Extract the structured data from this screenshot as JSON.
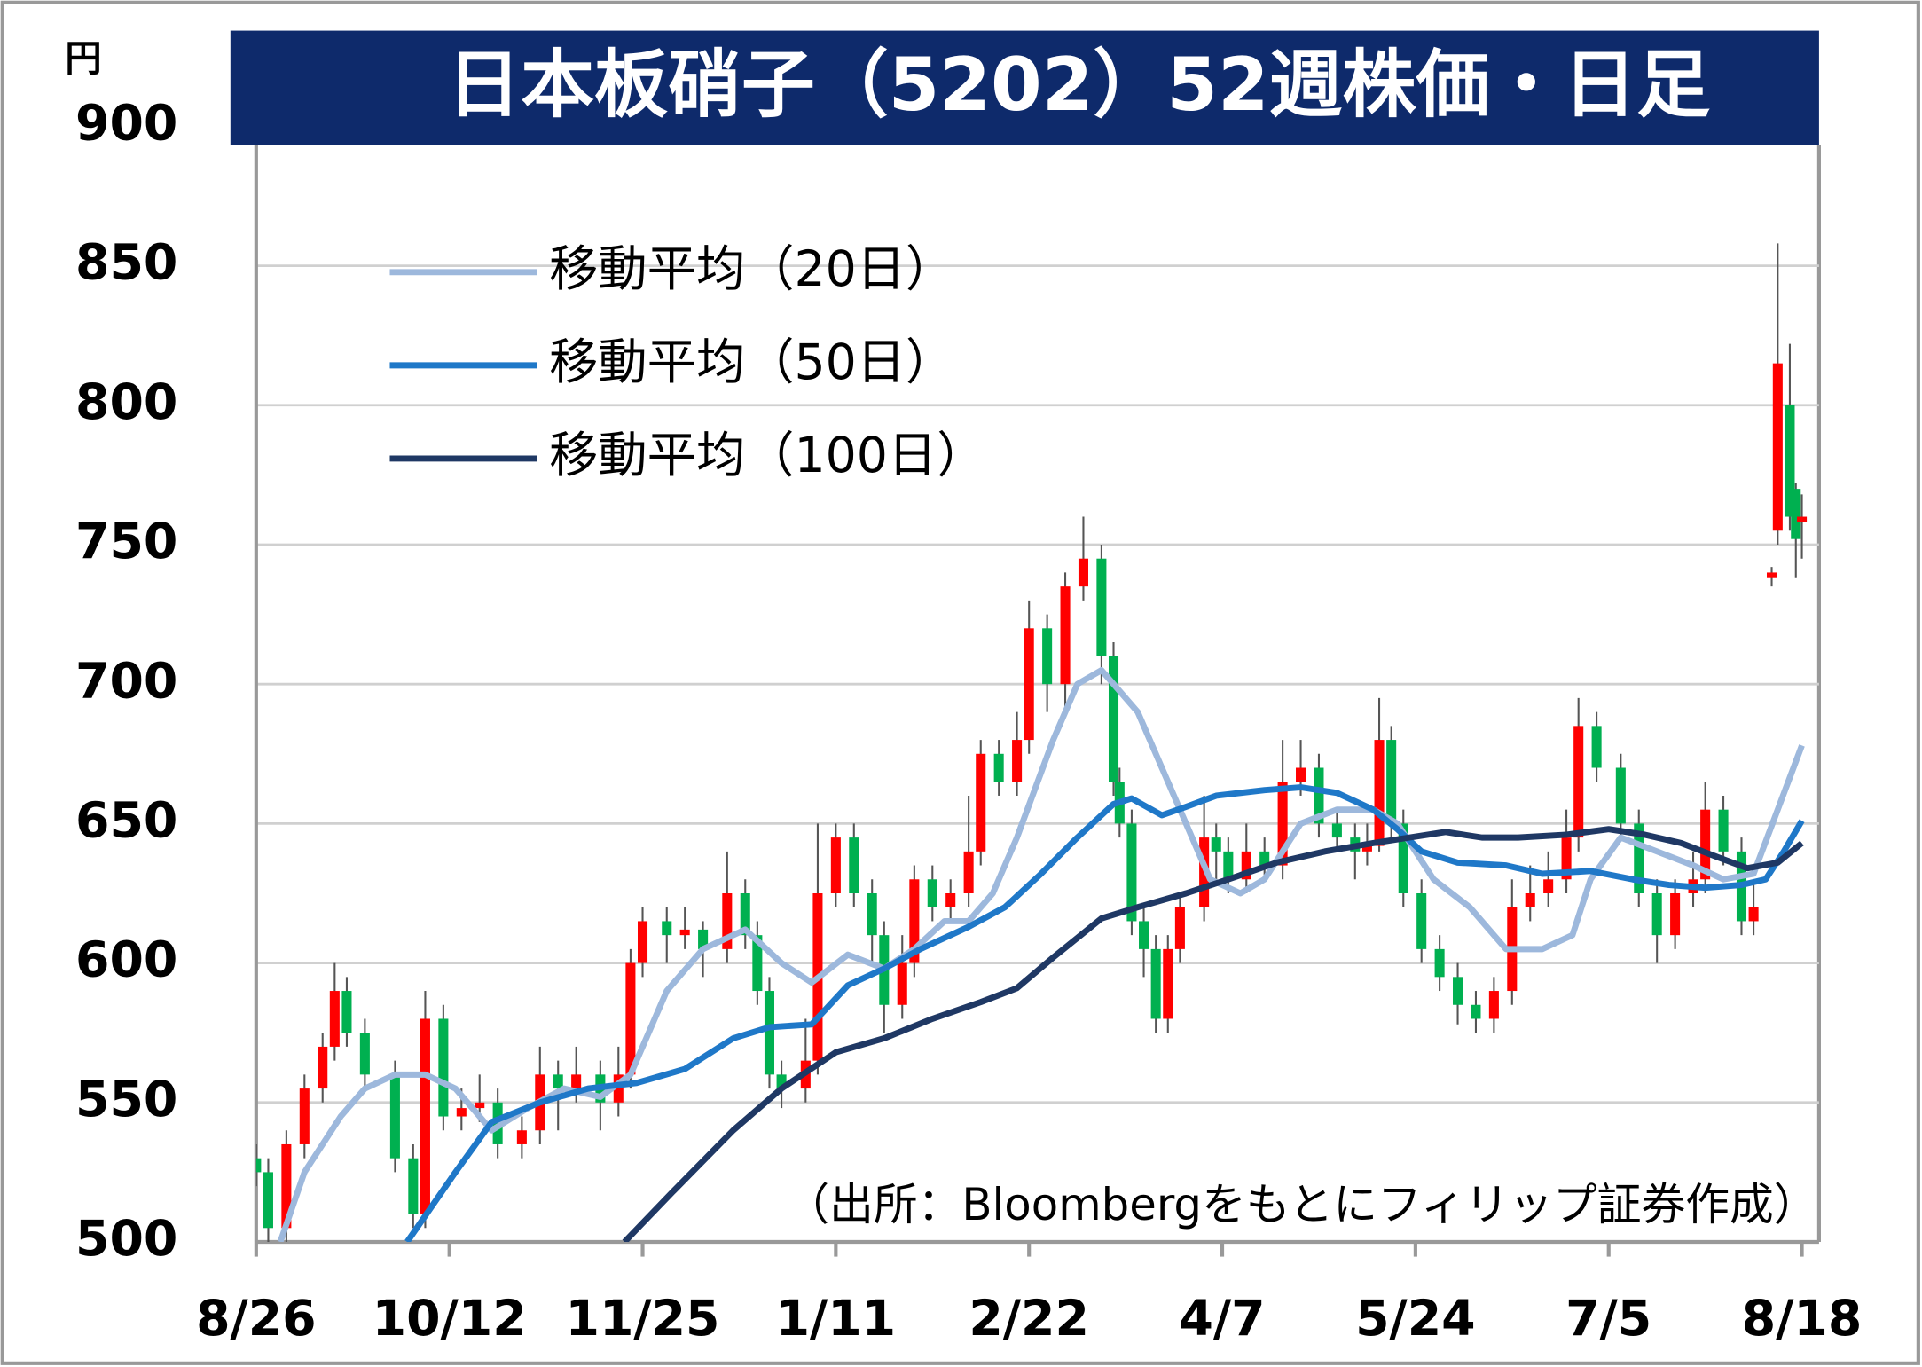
{
  "chart_data": {
    "type": "candlestick",
    "title": "日本板硝子（5202）52週株価・日足",
    "y_label": "円",
    "source": "（出所：Bloombergをもとにフィリップ証券作成）",
    "xlim": [
      0,
      256
    ],
    "xticks": [
      {
        "value": 0,
        "label": "8/26"
      },
      {
        "value": 32,
        "label": "10/12"
      },
      {
        "value": 64,
        "label": "11/25"
      },
      {
        "value": 96,
        "label": "1/11"
      },
      {
        "value": 128,
        "label": "2/22"
      },
      {
        "value": 160,
        "label": "4/7"
      },
      {
        "value": 192,
        "label": "5/24"
      },
      {
        "value": 224,
        "label": "7/5"
      },
      {
        "value": 256,
        "label": "8/18"
      }
    ],
    "ylim": [
      500,
      900
    ],
    "yticks": [
      500,
      550,
      600,
      650,
      700,
      750,
      800,
      850,
      900
    ],
    "grid": true,
    "up_color": "#ff0000",
    "down_color": "#00b050",
    "candles": {
      "x": [
        0,
        2,
        5,
        8,
        11,
        13,
        15,
        18,
        23,
        26,
        28,
        31,
        34,
        37,
        40,
        44,
        47,
        50,
        53,
        57,
        60,
        62,
        64,
        68,
        71,
        74,
        78,
        81,
        83,
        85,
        87,
        91,
        93,
        96,
        99,
        102,
        104,
        107,
        109,
        112,
        115,
        118,
        120,
        123,
        126,
        128,
        131,
        134,
        137,
        140,
        142,
        143,
        145,
        147,
        149,
        151,
        153,
        157,
        159,
        161,
        164,
        167,
        170,
        173,
        176,
        179,
        182,
        184,
        186,
        188,
        190,
        193,
        196,
        199,
        202,
        205,
        208,
        211,
        214,
        217,
        219,
        222,
        226,
        229,
        232,
        235,
        238,
        240,
        243,
        246,
        248,
        251,
        252,
        254,
        255,
        256
      ],
      "open": [
        530,
        525,
        505,
        535,
        555,
        570,
        590,
        575,
        560,
        530,
        510,
        580,
        545,
        548,
        550,
        535,
        540,
        560,
        555,
        560,
        550,
        560,
        600,
        615,
        610,
        612,
        605,
        625,
        610,
        590,
        560,
        555,
        565,
        625,
        645,
        625,
        610,
        585,
        600,
        630,
        620,
        625,
        640,
        675,
        665,
        680,
        720,
        700,
        735,
        745,
        710,
        665,
        650,
        615,
        605,
        580,
        605,
        620,
        645,
        640,
        630,
        640,
        635,
        665,
        670,
        650,
        645,
        640,
        642,
        680,
        650,
        625,
        605,
        595,
        585,
        580,
        590,
        620,
        625,
        630,
        645,
        685,
        670,
        650,
        625,
        610,
        625,
        630,
        655,
        640,
        615,
        738,
        755,
        800,
        770,
        758
      ],
      "high": [
        535,
        530,
        540,
        560,
        575,
        600,
        595,
        580,
        565,
        535,
        590,
        585,
        555,
        560,
        555,
        545,
        570,
        565,
        570,
        565,
        570,
        605,
        620,
        620,
        620,
        615,
        640,
        630,
        615,
        595,
        565,
        580,
        650,
        650,
        650,
        630,
        615,
        610,
        635,
        635,
        630,
        660,
        680,
        680,
        690,
        730,
        725,
        740,
        760,
        750,
        715,
        670,
        655,
        620,
        610,
        610,
        625,
        660,
        650,
        645,
        650,
        645,
        680,
        680,
        675,
        655,
        650,
        650,
        695,
        685,
        655,
        630,
        610,
        600,
        590,
        595,
        630,
        635,
        640,
        655,
        695,
        690,
        675,
        655,
        630,
        630,
        640,
        665,
        660,
        645,
        630,
        742,
        858,
        822,
        772,
        768
      ],
      "low": [
        520,
        500,
        500,
        530,
        550,
        565,
        570,
        555,
        525,
        505,
        505,
        540,
        540,
        543,
        530,
        530,
        535,
        540,
        550,
        540,
        545,
        555,
        595,
        600,
        605,
        595,
        600,
        605,
        585,
        555,
        548,
        550,
        560,
        620,
        620,
        600,
        575,
        580,
        595,
        615,
        615,
        620,
        635,
        660,
        660,
        675,
        690,
        690,
        730,
        700,
        660,
        645,
        610,
        595,
        575,
        575,
        600,
        615,
        630,
        625,
        625,
        630,
        630,
        660,
        645,
        640,
        630,
        635,
        640,
        645,
        620,
        600,
        590,
        578,
        575,
        575,
        585,
        615,
        620,
        625,
        640,
        665,
        645,
        620,
        600,
        605,
        620,
        625,
        635,
        610,
        610,
        735,
        750,
        755,
        738,
        745
      ],
      "close": [
        525,
        505,
        535,
        555,
        570,
        590,
        575,
        560,
        530,
        510,
        580,
        545,
        548,
        550,
        535,
        540,
        560,
        555,
        560,
        550,
        560,
        600,
        615,
        610,
        612,
        605,
        625,
        610,
        590,
        560,
        555,
        565,
        625,
        645,
        625,
        610,
        585,
        600,
        630,
        620,
        625,
        640,
        675,
        665,
        680,
        720,
        700,
        735,
        745,
        710,
        665,
        650,
        615,
        605,
        580,
        605,
        620,
        645,
        640,
        630,
        640,
        635,
        665,
        670,
        650,
        645,
        640,
        642,
        680,
        650,
        625,
        605,
        595,
        585,
        580,
        590,
        620,
        625,
        630,
        645,
        685,
        670,
        650,
        625,
        610,
        625,
        630,
        655,
        640,
        615,
        620,
        740,
        815,
        760,
        752,
        760
      ]
    },
    "series": [
      {
        "name": "移動平均（20日）",
        "color": "#9db8dc",
        "x": [
          4,
          8,
          14,
          18,
          23,
          28,
          33,
          39,
          45,
          51,
          57,
          62,
          68,
          74,
          81,
          87,
          92,
          98,
          104,
          109,
          114,
          118,
          122,
          126,
          132,
          136,
          140,
          146,
          152,
          158,
          163,
          167,
          173,
          179,
          185,
          189,
          195,
          201,
          207,
          213,
          218,
          221,
          226,
          232,
          238,
          243,
          248,
          252,
          256
        ],
        "values": [
          500,
          525,
          545,
          555,
          560,
          560,
          555,
          540,
          548,
          555,
          552,
          560,
          590,
          605,
          612,
          600,
          593,
          603,
          598,
          605,
          615,
          615,
          625,
          645,
          680,
          700,
          705,
          690,
          660,
          630,
          625,
          630,
          650,
          655,
          655,
          650,
          630,
          620,
          605,
          605,
          610,
          630,
          645,
          640,
          635,
          630,
          632,
          655,
          678
        ]
      },
      {
        "name": "移動平均（50日）",
        "color": "#1f78c8",
        "x": [
          25,
          33,
          39,
          47,
          55,
          63,
          71,
          79,
          85,
          92,
          98,
          104,
          110,
          118,
          124,
          130,
          136,
          142,
          145,
          150,
          154,
          159,
          167,
          173,
          179,
          185,
          189,
          193,
          199,
          207,
          213,
          221,
          228,
          234,
          240,
          246,
          250,
          253,
          256
        ],
        "values": [
          500,
          525,
          543,
          550,
          555,
          557,
          562,
          573,
          577,
          578,
          592,
          598,
          605,
          613,
          620,
          632,
          645,
          657,
          659,
          653,
          656,
          660,
          662,
          663,
          661,
          655,
          648,
          640,
          636,
          635,
          632,
          633,
          630,
          628,
          627,
          628,
          630,
          640,
          651
        ]
      },
      {
        "name": "移動平均（100日）",
        "color": "#1f3864",
        "x": [
          61,
          69,
          79,
          87,
          96,
          104,
          112,
          120,
          126,
          132,
          140,
          146,
          154,
          161,
          169,
          177,
          185,
          191,
          197,
          203,
          209,
          217,
          224,
          230,
          236,
          242,
          247,
          252,
          256
        ],
        "values": [
          500,
          518,
          540,
          555,
          568,
          573,
          580,
          586,
          591,
          602,
          616,
          620,
          625,
          630,
          636,
          640,
          643,
          645,
          647,
          645,
          645,
          646,
          648,
          646,
          643,
          638,
          634,
          636,
          643
        ]
      }
    ]
  }
}
